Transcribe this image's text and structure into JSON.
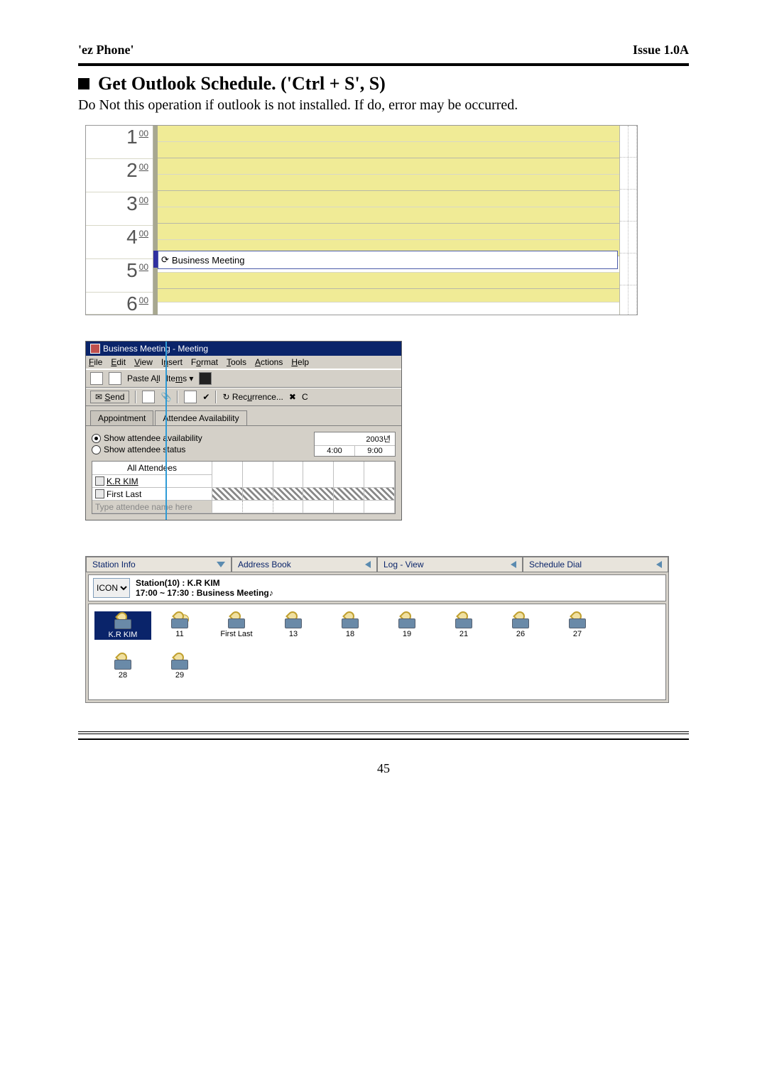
{
  "header": {
    "left": "'ez Phone'",
    "right": "Issue 1.0A"
  },
  "section": {
    "title": "Get Outlook Schedule. ('Ctrl + S', S)",
    "desc": "Do Not this operation if outlook is not installed. If do, error may be occurred."
  },
  "calendar": {
    "hours": [
      "1",
      "2",
      "3",
      "4",
      "5",
      "6"
    ],
    "min_label": "00",
    "event_label": "Business Meeting"
  },
  "outlook": {
    "title": "Business Meeting - Meeting",
    "menus": [
      "File",
      "Edit",
      "View",
      "Insert",
      "Format",
      "Tools",
      "Actions",
      "Help"
    ],
    "paste_label": "Paste All",
    "items_label": "Items",
    "send_label": "Send",
    "recur_label": "Recurrence...",
    "tab1": "Appointment",
    "tab2": "Attendee Availability",
    "radio1": "Show attendee availability",
    "radio2": "Show attendee status",
    "year_label": "2003년",
    "time1": "4:00",
    "time2": "9:00",
    "col_header": "All Attendees",
    "row1": "K.R KIM",
    "row2": "First Last",
    "placeholder": "Type attendee name here"
  },
  "ez": {
    "tabs": [
      "Station Info",
      "Address Book",
      "Log - View",
      "Schedule Dial"
    ],
    "dropdown_label": "ICON",
    "station_line": "Station(10) :  K.R KIM",
    "schedule_line": "17:00 ~ 17:30 : Business Meeting♪",
    "stations": [
      {
        "label": "K.R KIM",
        "sel": true,
        "dual": false
      },
      {
        "label": "11",
        "sel": false,
        "dual": true
      },
      {
        "label": "First Last",
        "sel": false,
        "dual": false
      },
      {
        "label": "13",
        "sel": false,
        "dual": false
      },
      {
        "label": "18",
        "sel": false,
        "dual": false
      },
      {
        "label": "19",
        "sel": false,
        "dual": false
      },
      {
        "label": "21",
        "sel": false,
        "dual": false
      },
      {
        "label": "26",
        "sel": false,
        "dual": false
      },
      {
        "label": "27",
        "sel": false,
        "dual": false
      },
      {
        "label": "28",
        "sel": false,
        "dual": false
      },
      {
        "label": "29",
        "sel": false,
        "dual": false
      }
    ]
  },
  "page_number": "45",
  "colors": {
    "titlebar": "#0a246a",
    "calendar_fill": "#f0eb96",
    "guide_blue": "#2e9bd6"
  }
}
